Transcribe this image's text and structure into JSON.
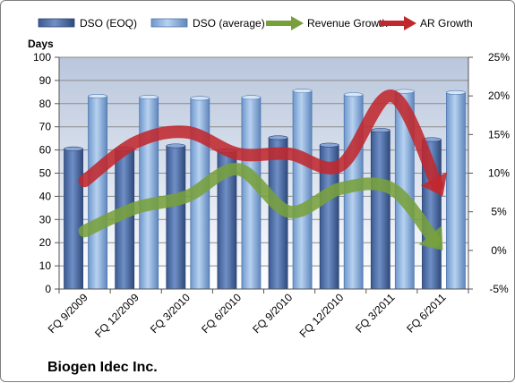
{
  "chart_data": {
    "type": "bar",
    "categories": [
      "FQ 9/2009",
      "FQ 12/2009",
      "FQ 3/2010",
      "FQ 6/2010",
      "FQ 9/2010",
      "FQ 12/2010",
      "FQ 3/2011",
      "FQ 6/2011"
    ],
    "series": [
      {
        "name": "DSO (EOQ)",
        "kind": "bar",
        "axis": "left",
        "color": "#4f6fa8",
        "values": [
          60.5,
          60.5,
          61.8,
          59.7,
          65.3,
          62.1,
          68.5,
          64.5
        ]
      },
      {
        "name": "DSO (average)",
        "kind": "bar",
        "axis": "left",
        "color": "#8fb4e0",
        "values": [
          83.2,
          82.8,
          82.3,
          82.7,
          85.5,
          83.9,
          85.3,
          84.8
        ]
      },
      {
        "name": "Revenue Growth",
        "kind": "arrow-line",
        "axis": "right",
        "color": "#77a03c",
        "values": [
          2.5,
          5.5,
          7.0,
          10.5,
          5.0,
          8.0,
          8.0,
          0.0
        ]
      },
      {
        "name": "AR Growth",
        "kind": "arrow-line",
        "axis": "right",
        "color": "#c0282e",
        "values": [
          9.0,
          14.0,
          15.3,
          12.5,
          12.5,
          11.0,
          20.0,
          7.0
        ]
      }
    ],
    "y_left": {
      "label": "Days",
      "min": 0,
      "max": 100,
      "ticks": [
        0,
        10,
        20,
        30,
        40,
        50,
        60,
        70,
        80,
        90,
        100
      ]
    },
    "y_right": {
      "min": -5,
      "max": 25,
      "ticks": [
        "-5%",
        "0%",
        "5%",
        "10%",
        "15%",
        "20%",
        "25%"
      ]
    },
    "grid": true,
    "legend": "top"
  },
  "company_name": "Biogen Idec Inc."
}
